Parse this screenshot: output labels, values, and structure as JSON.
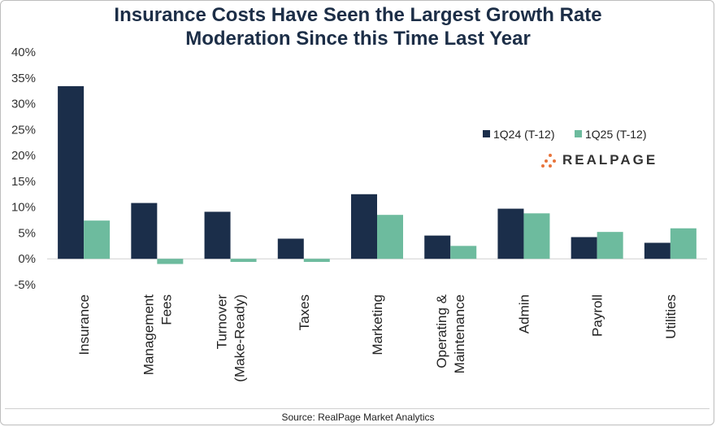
{
  "chart_data": {
    "type": "bar",
    "title": "Insurance Costs Have Seen the Largest Growth Rate Moderation Since this Time Last Year",
    "title_lines": [
      "Insurance Costs Have Seen the Largest Growth Rate",
      "Moderation Since this Time Last Year"
    ],
    "categories": [
      [
        "Insurance"
      ],
      [
        "Management",
        "Fees"
      ],
      [
        "Turnover",
        "(Make-Ready)"
      ],
      [
        "Taxes"
      ],
      [
        "Marketing"
      ],
      [
        "Operating &",
        "Maintenance"
      ],
      [
        "Admin"
      ],
      [
        "Payroll"
      ],
      [
        "Utilities"
      ]
    ],
    "series": [
      {
        "name": "1Q24 (T-12)",
        "color": "#1b2e4a",
        "values": [
          33.4,
          10.8,
          9.1,
          3.9,
          12.5,
          4.5,
          9.7,
          4.2,
          3.1
        ]
      },
      {
        "name": "1Q25 (T-12)",
        "color": "#6dbb9e",
        "values": [
          7.4,
          -1.0,
          -0.6,
          -0.6,
          8.5,
          2.5,
          8.8,
          5.2,
          5.9
        ]
      }
    ],
    "ylim": [
      -5,
      40
    ],
    "yticks": [
      -5,
      0,
      5,
      10,
      15,
      20,
      25,
      30,
      35,
      40
    ],
    "ytick_labels": [
      "-5%",
      "0%",
      "5%",
      "10%",
      "15%",
      "20%",
      "25%",
      "30%",
      "35%",
      "40%"
    ],
    "legend_position": "top-right",
    "xlabel": "",
    "ylabel": ""
  },
  "source": "Source: RealPage Market Analytics",
  "logo_text": "REALPAGE"
}
